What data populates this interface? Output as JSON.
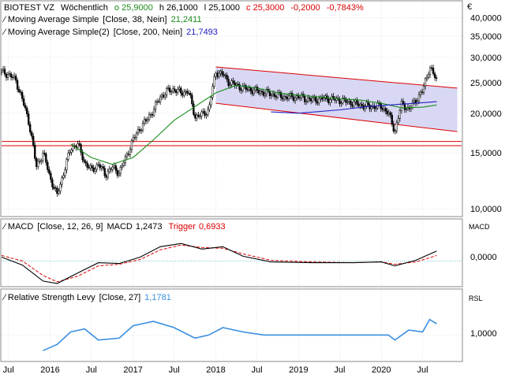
{
  "header": {
    "instrument": "BIOTEST VZ",
    "period": "Wöchentlich",
    "open": "o 25,9000",
    "high": "h 26,1000",
    "low": "l 25,1000",
    "close": "c 25,3000",
    "change": "-0,2000",
    "change_pct": "-0,7843%",
    "currency": "€"
  },
  "indicators": [
    {
      "label": "Moving Average Simple",
      "params": "[Close, 38, Nein]",
      "value": "21,2411",
      "color": "#1a8c1a"
    },
    {
      "label": "Moving Average Simple(2)",
      "params": "[Close, 200, Nein]",
      "value": "21,7493",
      "color": "#2020c0"
    }
  ],
  "macd_panel": {
    "label": "MACD",
    "params": "[Close, 12, 26, 9]",
    "macd_name": "MACD",
    "macd_value": "1,2473",
    "trigger_name": "Trigger",
    "trigger_value": "0,6933",
    "axis_label": "MACD",
    "tick": "0,0000"
  },
  "rsl_panel": {
    "label": "Relative Strength Levy",
    "params": "[Close, 27]",
    "value": "1,1781",
    "axis_label": "RSL",
    "tick": "1,0000"
  },
  "colors": {
    "candle": "#000000",
    "sma38": "#1a8c1a",
    "sma200": "#2020c0",
    "channel": "#dd0000",
    "channel_fill": "#d8d8f4",
    "macd": "#000000",
    "trigger": "#dd0000",
    "rsl": "#3a8ee0",
    "grid": "#cccccc"
  },
  "chart_data": {
    "type": "candlestick",
    "y_scale": "log",
    "ylim": [
      9.5,
      45
    ],
    "y_ticks": [
      "10,0000",
      "15,0000",
      "20,0000",
      "25,0000",
      "30,0000",
      "35,0000",
      "40,0000"
    ],
    "x_ticks": [
      "Jul",
      "2016",
      "Jul",
      "2017",
      "Jul",
      "2018",
      "Jul",
      "2019",
      "Jul",
      "2020",
      "Jul"
    ],
    "x_tick_dates": [
      "2015-07",
      "2016-01",
      "2016-07",
      "2017-01",
      "2017-07",
      "2018-01",
      "2018-07",
      "2019-01",
      "2019-07",
      "2020-01",
      "2020-07"
    ],
    "price_path": [
      [
        "2015-06",
        27.0
      ],
      [
        "2015-07",
        26.5
      ],
      [
        "2015-08",
        25.5
      ],
      [
        "2015-09",
        22.0
      ],
      [
        "2015-10",
        18.5
      ],
      [
        "2015-11",
        13.5
      ],
      [
        "2015-12",
        15.0
      ],
      [
        "2016-01",
        12.5
      ],
      [
        "2016-02",
        11.0
      ],
      [
        "2016-03",
        13.0
      ],
      [
        "2016-04",
        15.5
      ],
      [
        "2016-05",
        16.0
      ],
      [
        "2016-06",
        14.0
      ],
      [
        "2016-07",
        13.2
      ],
      [
        "2016-08",
        13.8
      ],
      [
        "2016-09",
        12.8
      ],
      [
        "2016-10",
        13.5
      ],
      [
        "2016-11",
        13.0
      ],
      [
        "2016-12",
        14.5
      ],
      [
        "2017-01",
        16.5
      ],
      [
        "2017-02",
        18.0
      ],
      [
        "2017-03",
        19.0
      ],
      [
        "2017-04",
        20.5
      ],
      [
        "2017-05",
        22.5
      ],
      [
        "2017-06",
        23.5
      ],
      [
        "2017-07",
        23.8
      ],
      [
        "2017-08",
        23.2
      ],
      [
        "2017-09",
        23.5
      ],
      [
        "2017-10",
        19.5
      ],
      [
        "2017-11",
        19.8
      ],
      [
        "2017-12",
        20.5
      ],
      [
        "2018-01",
        27.0
      ],
      [
        "2018-02",
        26.5
      ],
      [
        "2018-03",
        25.0
      ],
      [
        "2018-04",
        24.5
      ],
      [
        "2018-05",
        24.0
      ],
      [
        "2018-07",
        23.5
      ],
      [
        "2018-09",
        23.0
      ],
      [
        "2018-11",
        22.5
      ],
      [
        "2019-01",
        22.5
      ],
      [
        "2019-03",
        22.0
      ],
      [
        "2019-05",
        22.3
      ],
      [
        "2019-07",
        22.0
      ],
      [
        "2019-09",
        21.5
      ],
      [
        "2019-11",
        21.0
      ],
      [
        "2020-01",
        21.0
      ],
      [
        "2020-02",
        20.0
      ],
      [
        "2020-03",
        17.5
      ],
      [
        "2020-04",
        21.5
      ],
      [
        "2020-05",
        20.5
      ],
      [
        "2020-06",
        22.0
      ],
      [
        "2020-07",
        23.5
      ],
      [
        "2020-08",
        28.0
      ],
      [
        "2020-09",
        25.3
      ]
    ],
    "sma38_path": [
      [
        "2016-04",
        16.0
      ],
      [
        "2016-07",
        14.5
      ],
      [
        "2016-10",
        13.8
      ],
      [
        "2017-01",
        14.5
      ],
      [
        "2017-04",
        16.5
      ],
      [
        "2017-07",
        19.0
      ],
      [
        "2017-10",
        21.0
      ],
      [
        "2018-01",
        23.2
      ],
      [
        "2018-04",
        24.5
      ],
      [
        "2018-07",
        24.0
      ],
      [
        "2018-10",
        23.2
      ],
      [
        "2019-01",
        22.8
      ],
      [
        "2019-04",
        22.5
      ],
      [
        "2019-07",
        22.2
      ],
      [
        "2019-10",
        22.0
      ],
      [
        "2020-01",
        21.5
      ],
      [
        "2020-04",
        20.8
      ],
      [
        "2020-07",
        20.9
      ],
      [
        "2020-09",
        21.24
      ]
    ],
    "sma200_path": [
      [
        "2018-09",
        20.2
      ],
      [
        "2019-01",
        20.0
      ],
      [
        "2019-07",
        20.5
      ],
      [
        "2019-11",
        21.0
      ],
      [
        "2020-03",
        21.3
      ],
      [
        "2020-07",
        21.6
      ],
      [
        "2020-09",
        21.75
      ]
    ],
    "horizontal_lines": [
      16.3,
      15.8
    ],
    "channel_upper": [
      [
        "2018-01",
        28.0
      ],
      [
        "2020-12",
        24.0
      ]
    ],
    "channel_lower": [
      [
        "2018-01",
        21.5
      ],
      [
        "2020-12",
        17.5
      ]
    ],
    "macd_ylim": [
      -3,
      3.5
    ],
    "macd_path": [
      [
        "2015-06",
        0.5
      ],
      [
        "2015-09",
        -0.5
      ],
      [
        "2015-12",
        -2.5
      ],
      [
        "2016-02",
        -2.8
      ],
      [
        "2016-05",
        -1.5
      ],
      [
        "2016-08",
        -0.2
      ],
      [
        "2016-11",
        -0.3
      ],
      [
        "2017-02",
        0.5
      ],
      [
        "2017-05",
        1.8
      ],
      [
        "2017-08",
        2.2
      ],
      [
        "2017-11",
        1.5
      ],
      [
        "2018-02",
        1.8
      ],
      [
        "2018-05",
        0.6
      ],
      [
        "2018-09",
        -0.1
      ],
      [
        "2019-03",
        -0.2
      ],
      [
        "2019-09",
        -0.2
      ],
      [
        "2020-01",
        -0.1
      ],
      [
        "2020-03",
        -0.6
      ],
      [
        "2020-06",
        0.1
      ],
      [
        "2020-09",
        1.25
      ]
    ],
    "trigger_path": [
      [
        "2015-06",
        0.7
      ],
      [
        "2015-09",
        0.0
      ],
      [
        "2015-12",
        -1.8
      ],
      [
        "2016-02",
        -2.6
      ],
      [
        "2016-05",
        -1.9
      ],
      [
        "2016-08",
        -0.6
      ],
      [
        "2016-11",
        -0.4
      ],
      [
        "2017-02",
        0.2
      ],
      [
        "2017-05",
        1.4
      ],
      [
        "2017-08",
        2.0
      ],
      [
        "2017-11",
        1.7
      ],
      [
        "2018-02",
        1.6
      ],
      [
        "2018-05",
        0.9
      ],
      [
        "2018-09",
        0.1
      ],
      [
        "2019-03",
        -0.1
      ],
      [
        "2019-09",
        -0.2
      ],
      [
        "2020-01",
        -0.1
      ],
      [
        "2020-03",
        -0.4
      ],
      [
        "2020-06",
        -0.1
      ],
      [
        "2020-09",
        0.69
      ]
    ],
    "rsl_ylim": [
      0.6,
      1.5
    ],
    "rsl_path": [
      [
        "2015-12",
        0.75
      ],
      [
        "2016-02",
        0.85
      ],
      [
        "2016-04",
        1.05
      ],
      [
        "2016-06",
        1.1
      ],
      [
        "2016-08",
        0.92
      ],
      [
        "2016-11",
        0.95
      ],
      [
        "2017-01",
        1.15
      ],
      [
        "2017-04",
        1.22
      ],
      [
        "2017-07",
        1.12
      ],
      [
        "2017-10",
        0.95
      ],
      [
        "2017-12",
        1.0
      ],
      [
        "2018-02",
        1.12
      ],
      [
        "2018-05",
        1.05
      ],
      [
        "2018-08",
        1.0
      ],
      [
        "2019-01",
        1.0
      ],
      [
        "2019-07",
        1.0
      ],
      [
        "2019-12",
        1.0
      ],
      [
        "2020-02",
        1.0
      ],
      [
        "2020-03",
        0.92
      ],
      [
        "2020-05",
        1.08
      ],
      [
        "2020-07",
        1.05
      ],
      [
        "2020-08",
        1.25
      ],
      [
        "2020-09",
        1.18
      ]
    ]
  }
}
